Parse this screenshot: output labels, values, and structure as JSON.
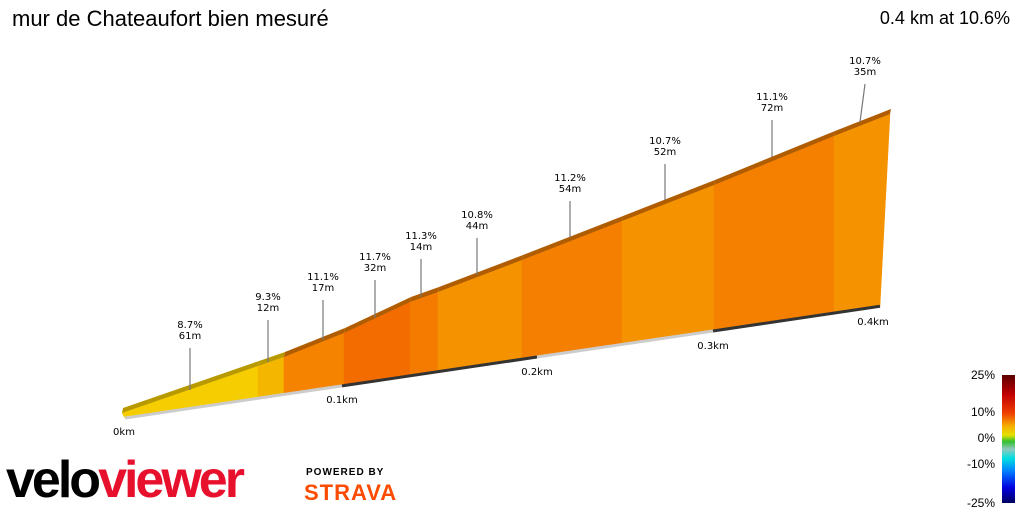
{
  "header": {
    "title": "mur de Chateaufort bien mesuré",
    "summary": "0.4 km at 10.6%"
  },
  "chart_data": {
    "type": "area",
    "title": "mur de Chateaufort bien mesuré",
    "x_unit": "km",
    "x_ticks": [
      "0km",
      "0.1km",
      "0.2km",
      "0.3km",
      "0.4km"
    ],
    "segments": [
      {
        "grade": "8.7%",
        "length": "61m",
        "color": "#f5cd00"
      },
      {
        "grade": "9.3%",
        "length": "12m",
        "color": "#f5b600"
      },
      {
        "grade": "11.1%",
        "length": "17m",
        "color": "#f58300"
      },
      {
        "grade": "11.7%",
        "length": "32m",
        "color": "#f26c00"
      },
      {
        "grade": "11.3%",
        "length": "14m",
        "color": "#f57a00"
      },
      {
        "grade": "10.8%",
        "length": "44m",
        "color": "#f59200"
      },
      {
        "grade": "11.2%",
        "length": "54m",
        "color": "#f57f00"
      },
      {
        "grade": "10.7%",
        "length": "52m",
        "color": "#f59200"
      },
      {
        "grade": "11.1%",
        "length": "72m",
        "color": "#f58000"
      },
      {
        "grade": "10.7%",
        "length": "35m",
        "color": "#f59200"
      }
    ],
    "legend": {
      "labels": [
        "25%",
        "10%",
        "0%",
        "-10%",
        "-25%"
      ]
    }
  },
  "branding": {
    "logo_a": "velo",
    "logo_b": "viewer",
    "powered": "POWERED BY",
    "strava": "STRAVA"
  }
}
